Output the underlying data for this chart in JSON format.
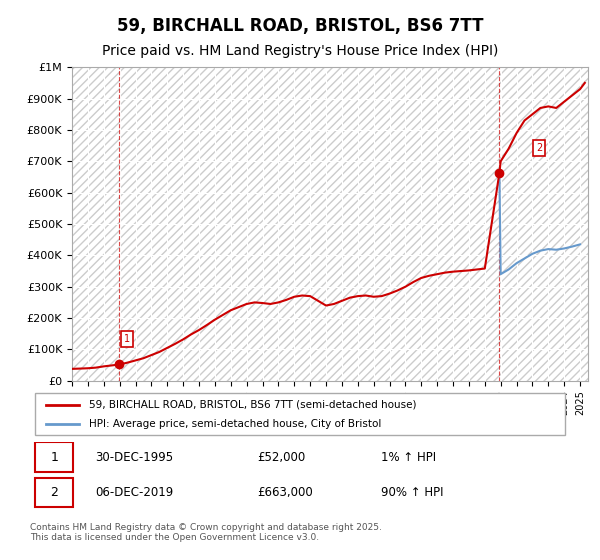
{
  "title": "59, BIRCHALL ROAD, BRISTOL, BS6 7TT",
  "subtitle": "Price paid vs. HM Land Registry's House Price Index (HPI)",
  "title_fontsize": 12,
  "subtitle_fontsize": 10,
  "ylabel_ticks": [
    "£0",
    "£100K",
    "£200K",
    "£300K",
    "£400K",
    "£500K",
    "£600K",
    "£700K",
    "£800K",
    "£900K",
    "£1M"
  ],
  "ylim": [
    0,
    1000000
  ],
  "xlim_start": 1993,
  "xlim_end": 2025.5,
  "background_color": "#ffffff",
  "plot_bg_color": "#f0f0f0",
  "hatch_color": "#ffffff",
  "grid_color": "#ffffff",
  "red_line_color": "#cc0000",
  "blue_line_color": "#6699cc",
  "point1_x": 1995.99,
  "point1_y": 52000,
  "point2_x": 2019.92,
  "point2_y": 663000,
  "legend_label1": "59, BIRCHALL ROAD, BRISTOL, BS6 7TT (semi-detached house)",
  "legend_label2": "HPI: Average price, semi-detached house, City of Bristol",
  "annotation1_label": "1",
  "annotation2_label": "2",
  "table_row1": [
    "1",
    "30-DEC-1995",
    "£52,000",
    "1% ↑ HPI"
  ],
  "table_row2": [
    "2",
    "06-DEC-2019",
    "£663,000",
    "90% ↑ HPI"
  ],
  "footnote": "Contains HM Land Registry data © Crown copyright and database right 2025.\nThis data is licensed under the Open Government Licence v3.0.",
  "red_line_data_x": [
    1993.0,
    1994.0,
    1994.5,
    1995.0,
    1995.99,
    1996.5,
    1997.0,
    1997.5,
    1998.0,
    1998.5,
    1999.0,
    1999.5,
    2000.0,
    2000.5,
    2001.0,
    2001.5,
    2002.0,
    2002.5,
    2003.0,
    2003.5,
    2004.0,
    2004.5,
    2005.0,
    2005.5,
    2006.0,
    2006.5,
    2007.0,
    2007.5,
    2008.0,
    2008.5,
    2009.0,
    2009.5,
    2010.0,
    2010.5,
    2011.0,
    2011.5,
    2012.0,
    2012.5,
    2013.0,
    2013.5,
    2014.0,
    2014.5,
    2015.0,
    2015.5,
    2016.0,
    2016.5,
    2017.0,
    2017.5,
    2018.0,
    2018.5,
    2019.0,
    2019.92,
    2020.0
  ],
  "red_line_data_y": [
    38000,
    40000,
    42000,
    46000,
    52000,
    58000,
    65000,
    72000,
    82000,
    92000,
    105000,
    118000,
    132000,
    148000,
    162000,
    178000,
    195000,
    210000,
    225000,
    235000,
    245000,
    250000,
    248000,
    245000,
    250000,
    258000,
    268000,
    272000,
    270000,
    255000,
    240000,
    245000,
    255000,
    265000,
    270000,
    272000,
    268000,
    270000,
    278000,
    288000,
    300000,
    315000,
    328000,
    335000,
    340000,
    345000,
    348000,
    350000,
    352000,
    355000,
    358000,
    663000,
    663000
  ],
  "blue_line_data_x": [
    2019.92,
    2020.0,
    2020.5,
    2021.0,
    2021.5,
    2022.0,
    2022.5,
    2023.0,
    2023.5,
    2024.0,
    2024.5,
    2025.0
  ],
  "blue_line_data_y": [
    663000,
    340000,
    355000,
    375000,
    390000,
    405000,
    415000,
    420000,
    418000,
    422000,
    428000,
    435000
  ],
  "red_line_extended_x": [
    2019.92,
    2020.0,
    2020.5,
    2021.0,
    2021.5,
    2022.0,
    2022.5,
    2023.0,
    2023.5,
    2024.0,
    2024.5,
    2025.0,
    2025.3
  ],
  "red_line_extended_y": [
    663000,
    700000,
    740000,
    790000,
    830000,
    850000,
    870000,
    875000,
    870000,
    890000,
    910000,
    930000,
    950000
  ]
}
